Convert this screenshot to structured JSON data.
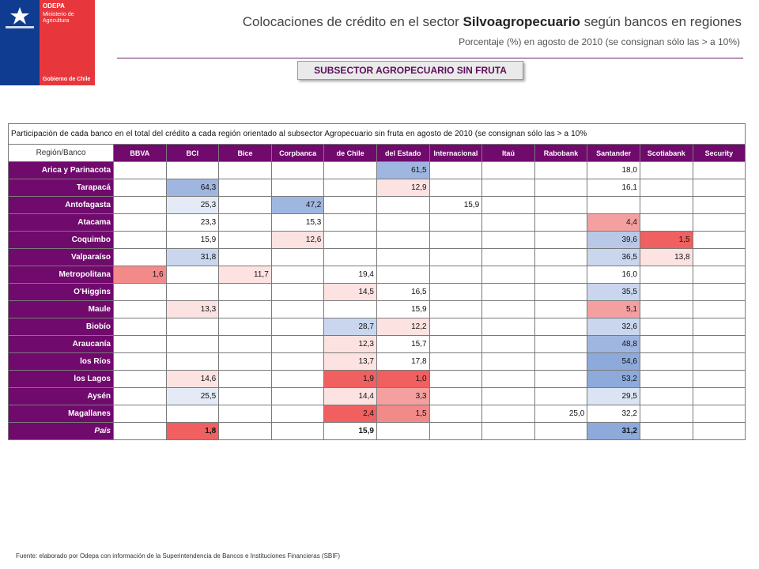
{
  "logo": {
    "org": "ODEPA",
    "ministry_line1": "Ministerio de",
    "ministry_line2": "Agricultura",
    "government": "Gobierno de Chile"
  },
  "header": {
    "title_pre": "Colocaciones de crédito en el sector ",
    "title_bold": "Silvoagropecuario",
    "title_post": " según bancos en regiones",
    "subtitle": "Porcentaje (%) en agosto de 2010 (se consignan sólo las > a 10%)",
    "subsector": "SUBSECTOR AGROPECUARIO SIN FRUTA"
  },
  "table": {
    "caption": "Participación de cada banco en el total del crédito a cada región orientado al subsector Agropecuario sin fruta en agosto de 2010 (se consignan sólo las > a 10%",
    "corner_label": "Región/Banco",
    "banks": [
      "BBVA",
      "BCI",
      "Bice",
      "Corpbanca",
      "de Chile",
      "del Estado",
      "Internacional",
      "Itaú",
      "Rabobank",
      "Santander",
      "Scotiabank",
      "Security"
    ],
    "rows": [
      {
        "region": "Arica y Parinacota",
        "cells": [
          "",
          "",
          "",
          "",
          "",
          "61,5",
          "",
          "",
          "",
          "18,0",
          "",
          ""
        ],
        "colors": [
          "",
          "",
          "",
          "",
          "",
          "#9fb7e0",
          "",
          "",
          "",
          "",
          "",
          ""
        ]
      },
      {
        "region": "Tarapacá",
        "cells": [
          "",
          "64,3",
          "",
          "",
          "",
          "12,9",
          "",
          "",
          "",
          "16,1",
          "",
          ""
        ],
        "colors": [
          "",
          "#9fb7e0",
          "",
          "",
          "",
          "#fde2e2",
          "",
          "",
          "",
          "",
          "",
          ""
        ]
      },
      {
        "region": "Antofagasta",
        "cells": [
          "",
          "25,3",
          "",
          "47,2",
          "",
          "",
          "15,9",
          "",
          "",
          "",
          "",
          ""
        ],
        "colors": [
          "",
          "#e4ebf7",
          "",
          "#9fb7e0",
          "",
          "",
          "",
          "",
          "",
          "",
          "",
          ""
        ]
      },
      {
        "region": "Atacama",
        "cells": [
          "",
          "23,3",
          "",
          "15,3",
          "",
          "",
          "",
          "",
          "",
          "4,4",
          "",
          ""
        ],
        "colors": [
          "",
          "",
          "",
          "",
          "",
          "",
          "",
          "",
          "",
          "#f4a0a0",
          "",
          ""
        ]
      },
      {
        "region": "Coquimbo",
        "cells": [
          "",
          "15,9",
          "",
          "12,6",
          "",
          "",
          "",
          "",
          "",
          "39,6",
          "1,5",
          ""
        ],
        "colors": [
          "",
          "",
          "",
          "#fde2e2",
          "",
          "",
          "",
          "",
          "",
          "#b8c9e8",
          "#f06060",
          ""
        ]
      },
      {
        "region": "Valparaíso",
        "cells": [
          "",
          "31,8",
          "",
          "",
          "",
          "",
          "",
          "",
          "",
          "36,5",
          "13,8",
          ""
        ],
        "colors": [
          "",
          "#c9d6ee",
          "",
          "",
          "",
          "",
          "",
          "",
          "",
          "#c9d6ee",
          "#fde2e2",
          ""
        ]
      },
      {
        "region": "Metropolitana",
        "cells": [
          "1,6",
          "",
          "11,7",
          "",
          "19,4",
          "",
          "",
          "",
          "",
          "16,0",
          "",
          ""
        ],
        "colors": [
          "#f28a8a",
          "",
          "#fde2e2",
          "",
          "",
          "",
          "",
          "",
          "",
          "",
          "",
          ""
        ]
      },
      {
        "region": "O'Higgins",
        "cells": [
          "",
          "",
          "",
          "",
          "14,5",
          "16,5",
          "",
          "",
          "",
          "35,5",
          "",
          ""
        ],
        "colors": [
          "",
          "",
          "",
          "",
          "#fde2e2",
          "",
          "",
          "",
          "",
          "#c9d6ee",
          "",
          ""
        ]
      },
      {
        "region": "Maule",
        "cells": [
          "",
          "13,3",
          "",
          "",
          "",
          "15,9",
          "",
          "",
          "",
          "5,1",
          "",
          ""
        ],
        "colors": [
          "",
          "#fde2e2",
          "",
          "",
          "",
          "",
          "",
          "",
          "",
          "#f4a0a0",
          "",
          ""
        ]
      },
      {
        "region": "Biobío",
        "cells": [
          "",
          "",
          "",
          "",
          "28,7",
          "12,2",
          "",
          "",
          "",
          "32,6",
          "",
          ""
        ],
        "colors": [
          "",
          "",
          "",
          "",
          "#c9d6ee",
          "#fde2e2",
          "",
          "",
          "",
          "#c9d6ee",
          "",
          ""
        ]
      },
      {
        "region": "Araucanía",
        "cells": [
          "",
          "",
          "",
          "",
          "12,3",
          "15,7",
          "",
          "",
          "",
          "48,8",
          "",
          ""
        ],
        "colors": [
          "",
          "",
          "",
          "",
          "#fde2e2",
          "",
          "",
          "",
          "",
          "#9fb7e0",
          "",
          ""
        ]
      },
      {
        "region": "los Ríos",
        "cells": [
          "",
          "",
          "",
          "",
          "13,7",
          "17,8",
          "",
          "",
          "",
          "54,6",
          "",
          ""
        ],
        "colors": [
          "",
          "",
          "",
          "",
          "#fde2e2",
          "",
          "",
          "",
          "",
          "#8eaadb",
          "",
          ""
        ]
      },
      {
        "region": "los Lagos",
        "cells": [
          "",
          "14,6",
          "",
          "",
          "1,9",
          "1,0",
          "",
          "",
          "",
          "53,2",
          "",
          ""
        ],
        "colors": [
          "",
          "#fde2e2",
          "",
          "",
          "#f06060",
          "#f06060",
          "",
          "",
          "",
          "#8eaadb",
          "",
          ""
        ]
      },
      {
        "region": "Aysén",
        "cells": [
          "",
          "25,5",
          "",
          "",
          "14,4",
          "3,3",
          "",
          "",
          "",
          "29,5",
          "",
          ""
        ],
        "colors": [
          "",
          "#e4ebf7",
          "",
          "",
          "#fde2e2",
          "#f4a0a0",
          "",
          "",
          "",
          "#dbe4f3",
          "",
          ""
        ]
      },
      {
        "region": "Magallanes",
        "cells": [
          "",
          "",
          "",
          "",
          "2,4",
          "1,5",
          "",
          "",
          "25,0",
          "32,2",
          "",
          ""
        ],
        "colors": [
          "",
          "",
          "",
          "",
          "#f06060",
          "#f28a8a",
          "",
          "",
          "",
          "",
          "",
          ""
        ]
      },
      {
        "region": "País",
        "cells": [
          "",
          "1,8",
          "",
          "",
          "15,9",
          "",
          "",
          "",
          "",
          "31,2",
          "",
          ""
        ],
        "colors": [
          "",
          "#f06060",
          "",
          "",
          "",
          "",
          "",
          "",
          "",
          "#8eaadb",
          "",
          ""
        ],
        "total": true
      }
    ]
  },
  "footer": {
    "source": "Fuente: elaborado por Odepa con información de la Superintendencia de Bancos e Instituciones Financieras (SBIF)"
  }
}
